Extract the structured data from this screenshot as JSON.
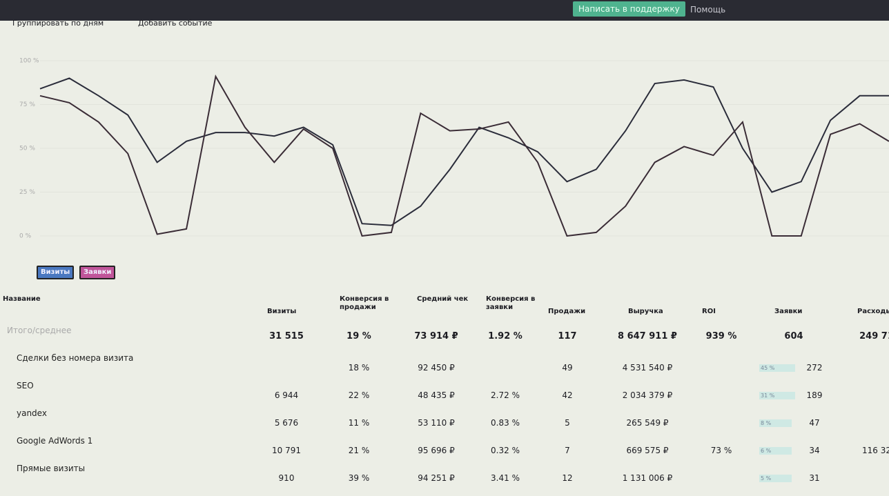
{
  "topbar": {
    "support_button": "Написать в поддержку",
    "help": "Помощь"
  },
  "toolbar": {
    "group_by": "Группировать по дням",
    "add_event": "Добавить событие"
  },
  "chart": {
    "type": "line",
    "ylim": [
      0,
      100
    ],
    "yticks": [
      {
        "value": 0,
        "label": "0 %"
      },
      {
        "value": 25,
        "label": "25 %"
      },
      {
        "value": 50,
        "label": "50 %"
      },
      {
        "value": 75,
        "label": "75 %"
      },
      {
        "value": 100,
        "label": "100 %"
      }
    ],
    "series": [
      {
        "name": "Визиты",
        "color": "#2a2c3a",
        "values": [
          84,
          90,
          80,
          69,
          42,
          54,
          59,
          59,
          57,
          62,
          52,
          7,
          6,
          17,
          38,
          62,
          56,
          48,
          31,
          38,
          60,
          87,
          89,
          85,
          50,
          25,
          31,
          66,
          80,
          80
        ]
      },
      {
        "name": "Заявки",
        "color": "#3a2c36",
        "values": [
          80,
          76,
          65,
          47,
          1,
          4,
          91,
          62,
          42,
          61,
          50,
          0,
          2,
          70,
          60,
          61,
          65,
          42,
          0,
          2,
          17,
          42,
          51,
          46,
          65,
          0,
          0,
          58,
          64,
          54
        ]
      }
    ]
  },
  "table": {
    "name_header": "Название",
    "columns": [
      "Визиты",
      "Конверсия в продажи",
      "Средний чек",
      "Конверсия в заявки",
      "Продажи",
      "Выручка",
      "ROI",
      "Заявки",
      "Расходы"
    ],
    "rows": [
      {
        "name": "Итого/среднее",
        "cells": [
          "31 515",
          "19 %",
          "73 914 ₽",
          "1.92 %",
          "117",
          "8 647 911 ₽",
          "939 %",
          "604",
          "249 71"
        ]
      },
      {
        "name": "Сделки без номера визита",
        "cells": [
          null,
          "18 %",
          "92 450 ₽",
          null,
          "49",
          "4 531 540 ₽",
          null,
          "272",
          null
        ],
        "share": "45 %"
      },
      {
        "name": "SEO",
        "cells": [
          "6 944",
          "22 %",
          "48 435 ₽",
          "2.72 %",
          "42",
          "2 034 379 ₽",
          null,
          "189",
          null
        ],
        "share": "31 %"
      },
      {
        "name": "yandex",
        "cells": [
          "5 676",
          "11 %",
          "53 110 ₽",
          "0.83 %",
          "5",
          "265 549 ₽",
          null,
          "47",
          null
        ],
        "share": "8 %"
      },
      {
        "name": "Google AdWords 1",
        "cells": [
          "10 791",
          "21 %",
          "95 696 ₽",
          "0.32 %",
          "7",
          "669 575 ₽",
          "73 %",
          "34",
          "116 32"
        ],
        "share": "6 %"
      },
      {
        "name": "Прямые визиты",
        "cells": [
          "910",
          "39 %",
          "94 251 ₽",
          "3.41 %",
          "12",
          "1 131 006 ₽",
          null,
          "31",
          null
        ],
        "share": "5 %"
      }
    ]
  }
}
